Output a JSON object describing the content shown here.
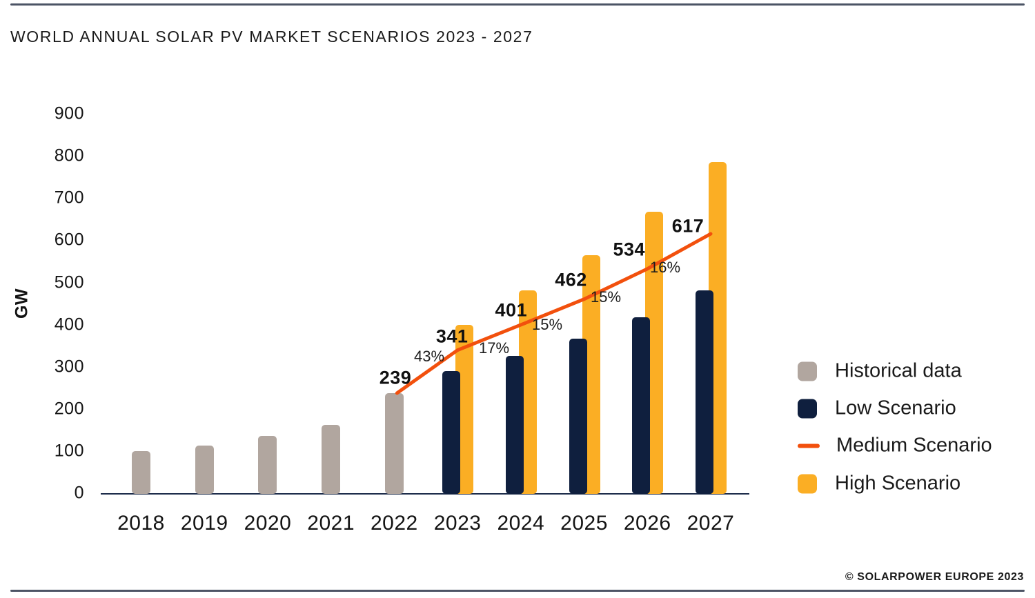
{
  "title": "WORLD ANNUAL SOLAR PV MARKET SCENARIOS 2023 - 2027",
  "footer": {
    "credit": "© SOLARPOWER EUROPE 2023"
  },
  "chart_data": {
    "type": "bar",
    "title": "WORLD ANNUAL SOLAR PV MARKET SCENARIOS 2023 - 2027",
    "xlabel": "",
    "ylabel": "GW",
    "ylim": [
      0,
      900
    ],
    "ytick_step": 100,
    "grid": false,
    "legend_position": "right",
    "categories": [
      "2018",
      "2019",
      "2020",
      "2021",
      "2022",
      "2023",
      "2024",
      "2025",
      "2026",
      "2027"
    ],
    "series": [
      {
        "name": "Historical data",
        "type": "bar",
        "color": "#b1a69f",
        "years": [
          "2018",
          "2019",
          "2020",
          "2021",
          "2022"
        ],
        "values": [
          102,
          115,
          138,
          164,
          239
        ]
      },
      {
        "name": "Low Scenario",
        "type": "bar",
        "color": "#0f1f3e",
        "years": [
          "2023",
          "2024",
          "2025",
          "2026",
          "2027"
        ],
        "values": [
          292,
          327,
          368,
          419,
          482
        ]
      },
      {
        "name": "Medium Scenario",
        "type": "line",
        "color": "#f2500d",
        "years": [
          "2022",
          "2023",
          "2024",
          "2025",
          "2026",
          "2027"
        ],
        "values": [
          239,
          341,
          401,
          462,
          534,
          617
        ],
        "point_labels": [
          "239",
          "341",
          "401",
          "462",
          "534",
          "617"
        ]
      },
      {
        "name": "High Scenario",
        "type": "bar",
        "color": "#fbae24",
        "years": [
          "2023",
          "2024",
          "2025",
          "2026",
          "2027"
        ],
        "values": [
          401,
          483,
          567,
          670,
          787
        ]
      }
    ],
    "growth_labels": [
      "43%",
      "17%",
      "15%",
      "15%",
      "16%"
    ],
    "legend": [
      {
        "label": "Historical data",
        "color": "#b1a69f",
        "marker": "square"
      },
      {
        "label": "Low Scenario",
        "color": "#0f1f3e",
        "marker": "square"
      },
      {
        "label": "Medium Scenario",
        "color": "#f2500d",
        "marker": "line"
      },
      {
        "label": "High Scenario",
        "color": "#fbae24",
        "marker": "square"
      }
    ]
  }
}
